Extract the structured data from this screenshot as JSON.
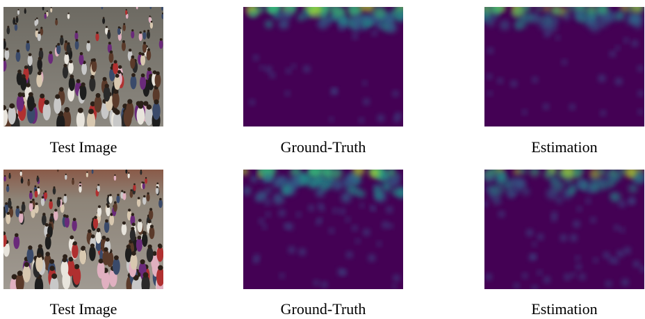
{
  "figure": {
    "rows": [
      {
        "panels": [
          {
            "caption": "Test Image"
          },
          {
            "caption": "Ground-Truth"
          },
          {
            "caption": "Estimation"
          }
        ]
      },
      {
        "panels": [
          {
            "caption": "Test Image"
          },
          {
            "caption": "Ground-Truth"
          },
          {
            "caption": "Estimation"
          }
        ]
      }
    ]
  }
}
